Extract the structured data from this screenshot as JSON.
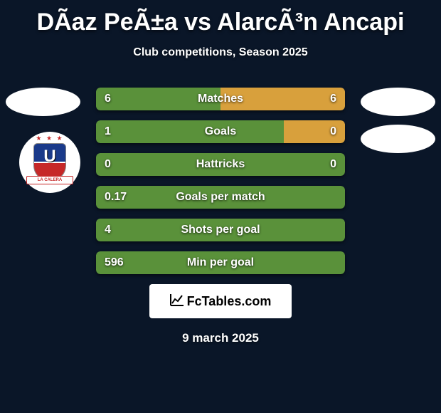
{
  "header": {
    "title": "DÃ­az PeÃ±a vs AlarcÃ³n Ancapi",
    "subtitle": "Club competitions, Season 2025"
  },
  "club_badge": {
    "stars": "★ ★ ★",
    "letter": "U",
    "ribbon": "LA CALERA"
  },
  "colors": {
    "bar_green": "#5a913a",
    "bar_orange": "#d8a03c",
    "background": "#0a1628",
    "avatar_bg": "#ffffff"
  },
  "stats": [
    {
      "label": "Matches",
      "left_val": "6",
      "right_val": "6",
      "left_pct": 50,
      "right_pct": 50
    },
    {
      "label": "Goals",
      "left_val": "1",
      "right_val": "0",
      "left_pct": 75.5,
      "right_pct": 24.5
    },
    {
      "label": "Hattricks",
      "left_val": "0",
      "right_val": "0",
      "left_pct": 100,
      "right_pct": 0
    },
    {
      "label": "Goals per match",
      "left_val": "0.17",
      "right_val": "",
      "left_pct": 100,
      "right_pct": 0
    },
    {
      "label": "Shots per goal",
      "left_val": "4",
      "right_val": "",
      "left_pct": 100,
      "right_pct": 0
    },
    {
      "label": "Min per goal",
      "left_val": "596",
      "right_val": "",
      "left_pct": 100,
      "right_pct": 0
    }
  ],
  "footer": {
    "logo_text": "FcTables.com",
    "date": "9 march 2025"
  }
}
